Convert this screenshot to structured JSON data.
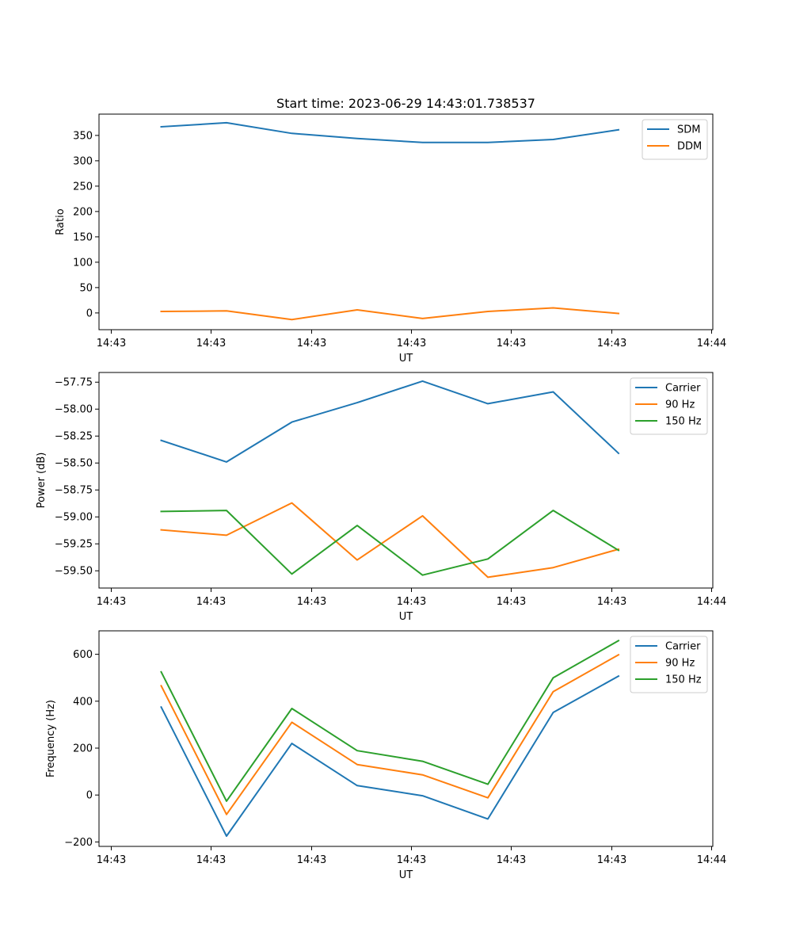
{
  "figure": {
    "title": "Start time: 2023-06-29 14:43:01.738537"
  },
  "chart_data": [
    {
      "type": "line",
      "title": "Start time: 2023-06-29 14:43:01.738537",
      "xlabel": "UT",
      "ylabel": "Ratio",
      "x_tick_labels": [
        "14:43",
        "14:43",
        "14:43",
        "14:43",
        "14:43",
        "14:43",
        "14:44"
      ],
      "y_ticks": [
        0,
        50,
        100,
        150,
        200,
        250,
        300,
        350
      ],
      "y_tick_labels": [
        "0",
        "50",
        "100",
        "150",
        "200",
        "250",
        "300",
        "350"
      ],
      "ylim": [
        -33,
        392
      ],
      "legend_position": "top-right",
      "grid": false,
      "series": [
        {
          "name": "SDM",
          "color": "#1f77b4",
          "values": [
            367,
            375,
            354,
            344,
            336,
            336,
            342,
            361
          ]
        },
        {
          "name": "DDM",
          "color": "#ff7f0e",
          "values": [
            3,
            4,
            -13,
            6,
            -11,
            3,
            10,
            -1
          ]
        }
      ]
    },
    {
      "type": "line",
      "title": "",
      "xlabel": "UT",
      "ylabel": "Power (dB)",
      "x_tick_labels": [
        "14:43",
        "14:43",
        "14:43",
        "14:43",
        "14:43",
        "14:43",
        "14:44"
      ],
      "y_ticks": [
        -57.75,
        -58.0,
        -58.25,
        -58.5,
        -58.75,
        -59.0,
        -59.25,
        -59.5
      ],
      "y_tick_labels": [
        "−57.75",
        "−58.00",
        "−58.25",
        "−58.50",
        "−58.75",
        "−59.00",
        "−59.25",
        "−59.50"
      ],
      "ylim": [
        -59.66,
        -57.66
      ],
      "legend_position": "top-right",
      "grid": false,
      "series": [
        {
          "name": "Carrier",
          "color": "#1f77b4",
          "values": [
            -58.29,
            -58.49,
            -58.12,
            -57.94,
            -57.74,
            -57.95,
            -57.84,
            -58.41
          ]
        },
        {
          "name": "90 Hz",
          "color": "#ff7f0e",
          "values": [
            -59.12,
            -59.17,
            -58.87,
            -59.4,
            -58.99,
            -59.56,
            -59.47,
            -59.3
          ]
        },
        {
          "name": "150 Hz",
          "color": "#2ca02c",
          "values": [
            -58.95,
            -58.94,
            -59.53,
            -59.08,
            -59.54,
            -59.39,
            -58.94,
            -59.31
          ]
        }
      ]
    },
    {
      "type": "line",
      "title": "",
      "xlabel": "UT",
      "ylabel": "Frequency (Hz)",
      "x_tick_labels": [
        "14:43",
        "14:43",
        "14:43",
        "14:43",
        "14:43",
        "14:43",
        "14:44"
      ],
      "y_ticks": [
        -200,
        0,
        200,
        400,
        600
      ],
      "y_tick_labels": [
        "−200",
        "0",
        "200",
        "400",
        "600"
      ],
      "ylim": [
        -219,
        700
      ],
      "legend_position": "top-right",
      "grid": false,
      "series": [
        {
          "name": "Carrier",
          "color": "#1f77b4",
          "values": [
            375,
            -175,
            220,
            40,
            -3,
            -102,
            352,
            507
          ]
        },
        {
          "name": "90 Hz",
          "color": "#ff7f0e",
          "values": [
            466,
            -83,
            310,
            130,
            86,
            -12,
            441,
            598
          ]
        },
        {
          "name": "150 Hz",
          "color": "#2ca02c",
          "values": [
            525,
            -26,
            369,
            189,
            144,
            46,
            500,
            658
          ]
        }
      ]
    }
  ]
}
